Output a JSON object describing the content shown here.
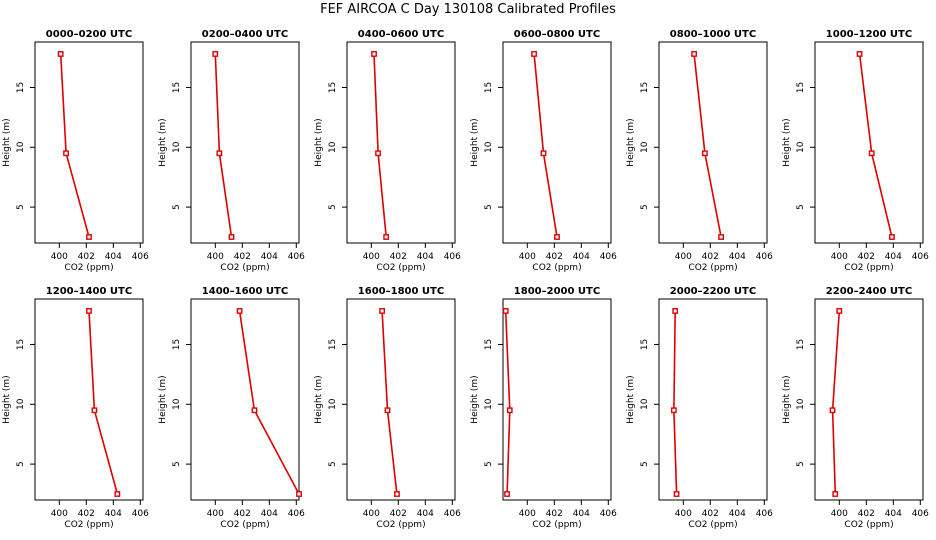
{
  "title": "FEF AIRCOA C  Day 130108  Calibrated Profiles",
  "colors": {
    "line": "#dd0000",
    "axis": "#000000"
  },
  "chart_data": [
    {
      "type": "line",
      "title": "0000–0200 UTC",
      "xlabel": "CO2 (ppm)",
      "ylabel": "Height (m)",
      "xlim": [
        398.2,
        406.2
      ],
      "ylim": [
        2,
        18.8
      ],
      "xticks": [
        400,
        402,
        404,
        406
      ],
      "yticks": [
        5,
        10,
        15
      ],
      "grid": false,
      "x": [
        402.2,
        400.5,
        400.1
      ],
      "y": [
        2.5,
        9.5,
        17.8
      ]
    },
    {
      "type": "line",
      "title": "0200–0400 UTC",
      "xlabel": "CO2 (ppm)",
      "ylabel": "Height (m)",
      "xlim": [
        398.2,
        406.2
      ],
      "ylim": [
        2,
        18.8
      ],
      "xticks": [
        400,
        402,
        404,
        406
      ],
      "yticks": [
        5,
        10,
        15
      ],
      "grid": false,
      "x": [
        401.2,
        400.3,
        400.0
      ],
      "y": [
        2.5,
        9.5,
        17.8
      ]
    },
    {
      "type": "line",
      "title": "0400–0600 UTC",
      "xlabel": "CO2 (ppm)",
      "ylabel": "Height (m)",
      "xlim": [
        398.2,
        406.2
      ],
      "ylim": [
        2,
        18.8
      ],
      "xticks": [
        400,
        402,
        404,
        406
      ],
      "yticks": [
        5,
        10,
        15
      ],
      "grid": false,
      "x": [
        401.1,
        400.5,
        400.2
      ],
      "y": [
        2.5,
        9.5,
        17.8
      ]
    },
    {
      "type": "line",
      "title": "0600–0800 UTC",
      "xlabel": "CO2 (ppm)",
      "ylabel": "Height (m)",
      "xlim": [
        398.2,
        406.2
      ],
      "ylim": [
        2,
        18.8
      ],
      "xticks": [
        400,
        402,
        404,
        406
      ],
      "yticks": [
        5,
        10,
        15
      ],
      "grid": false,
      "x": [
        402.2,
        401.2,
        400.5
      ],
      "y": [
        2.5,
        9.5,
        17.8
      ]
    },
    {
      "type": "line",
      "title": "0800–1000 UTC",
      "xlabel": "CO2 (ppm)",
      "ylabel": "Height (m)",
      "xlim": [
        398.2,
        406.2
      ],
      "ylim": [
        2,
        18.8
      ],
      "xticks": [
        400,
        402,
        404,
        406
      ],
      "yticks": [
        5,
        10,
        15
      ],
      "grid": false,
      "x": [
        402.8,
        401.6,
        400.8
      ],
      "y": [
        2.5,
        9.5,
        17.8
      ]
    },
    {
      "type": "line",
      "title": "1000–1200 UTC",
      "xlabel": "CO2 (ppm)",
      "ylabel": "Height (m)",
      "xlim": [
        398.2,
        406.2
      ],
      "ylim": [
        2,
        18.8
      ],
      "xticks": [
        400,
        402,
        404,
        406
      ],
      "yticks": [
        5,
        10,
        15
      ],
      "grid": false,
      "x": [
        403.9,
        402.4,
        401.5
      ],
      "y": [
        2.5,
        9.5,
        17.8
      ]
    },
    {
      "type": "line",
      "title": "1200–1400 UTC",
      "xlabel": "CO2 (ppm)",
      "ylabel": "Height (m)",
      "xlim": [
        398.2,
        406.2
      ],
      "ylim": [
        2,
        18.8
      ],
      "xticks": [
        400,
        402,
        404,
        406
      ],
      "yticks": [
        5,
        10,
        15
      ],
      "grid": false,
      "x": [
        404.3,
        402.6,
        402.2
      ],
      "y": [
        2.5,
        9.5,
        17.8
      ]
    },
    {
      "type": "line",
      "title": "1400–1600 UTC",
      "xlabel": "CO2 (ppm)",
      "ylabel": "Height (m)",
      "xlim": [
        398.2,
        406.2
      ],
      "ylim": [
        2,
        18.8
      ],
      "xticks": [
        400,
        402,
        404,
        406
      ],
      "yticks": [
        5,
        10,
        15
      ],
      "grid": false,
      "x": [
        406.2,
        402.9,
        401.8
      ],
      "y": [
        2.5,
        9.5,
        17.8
      ]
    },
    {
      "type": "line",
      "title": "1600–1800 UTC",
      "xlabel": "CO2 (ppm)",
      "ylabel": "Height (m)",
      "xlim": [
        398.2,
        406.2
      ],
      "ylim": [
        2,
        18.8
      ],
      "xticks": [
        400,
        402,
        404,
        406
      ],
      "yticks": [
        5,
        10,
        15
      ],
      "grid": false,
      "x": [
        401.9,
        401.2,
        400.8
      ],
      "y": [
        2.5,
        9.5,
        17.8
      ]
    },
    {
      "type": "line",
      "title": "1800–2000 UTC",
      "xlabel": "CO2 (ppm)",
      "ylabel": "Height (m)",
      "xlim": [
        398.2,
        406.2
      ],
      "ylim": [
        2,
        18.8
      ],
      "xticks": [
        400,
        402,
        404,
        406
      ],
      "yticks": [
        5,
        10,
        15
      ],
      "grid": false,
      "x": [
        398.5,
        398.7,
        398.4
      ],
      "y": [
        2.5,
        9.5,
        17.8
      ]
    },
    {
      "type": "line",
      "title": "2000–2200 UTC",
      "xlabel": "CO2 (ppm)",
      "ylabel": "Height (m)",
      "xlim": [
        398.2,
        406.2
      ],
      "ylim": [
        2,
        18.8
      ],
      "xticks": [
        400,
        402,
        404,
        406
      ],
      "yticks": [
        5,
        10,
        15
      ],
      "grid": false,
      "x": [
        399.5,
        399.3,
        399.4
      ],
      "y": [
        2.5,
        9.5,
        17.8
      ]
    },
    {
      "type": "line",
      "title": "2200–2400 UTC",
      "xlabel": "CO2 (ppm)",
      "ylabel": "Height (m)",
      "xlim": [
        398.2,
        406.2
      ],
      "ylim": [
        2,
        18.8
      ],
      "xticks": [
        400,
        402,
        404,
        406
      ],
      "yticks": [
        5,
        10,
        15
      ],
      "grid": false,
      "x": [
        399.7,
        399.5,
        400.0
      ],
      "y": [
        2.5,
        9.5,
        17.8
      ]
    }
  ]
}
